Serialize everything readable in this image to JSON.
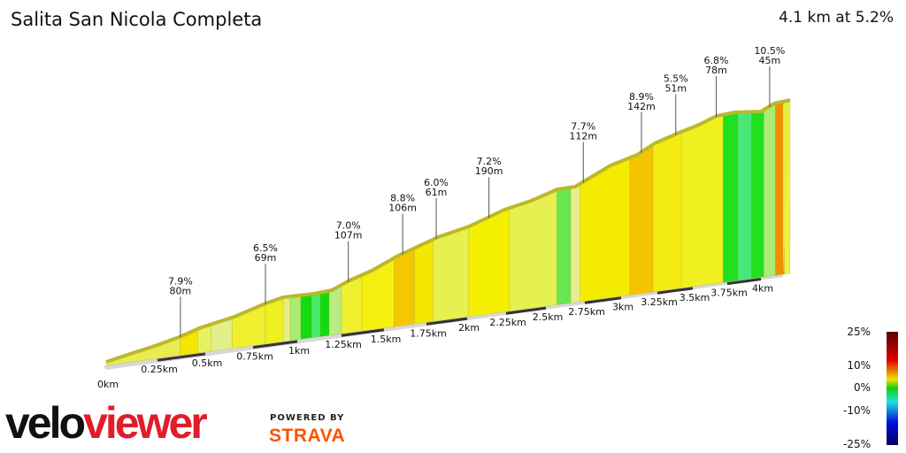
{
  "header": {
    "title": "Salita San Nicola Completa",
    "summary": "4.1 km at 5.2%"
  },
  "chart_data": {
    "type": "area",
    "title": "Salita San Nicola Completa",
    "x_unit": "km",
    "x_ticks": [
      "0km",
      "0.25km",
      "0.5km",
      "0.75km",
      "1km",
      "1.25km",
      "1.5km",
      "1.75km",
      "2km",
      "2.25km",
      "2.5km",
      "2.75km",
      "3km",
      "3.25km",
      "3.5km",
      "3.75km",
      "4km"
    ],
    "annotations": [
      {
        "km": 0.37,
        "gradient": "7.9%",
        "length": "80m"
      },
      {
        "km": 0.82,
        "gradient": "6.5%",
        "length": "69m"
      },
      {
        "km": 1.29,
        "gradient": "7.0%",
        "length": "107m"
      },
      {
        "km": 1.61,
        "gradient": "8.8%",
        "length": "106m"
      },
      {
        "km": 1.81,
        "gradient": "6.0%",
        "length": "61m"
      },
      {
        "km": 2.14,
        "gradient": "7.2%",
        "length": "190m"
      },
      {
        "km": 2.74,
        "gradient": "7.7%",
        "length": "112m"
      },
      {
        "km": 3.14,
        "gradient": "8.9%",
        "length": "142m"
      },
      {
        "km": 3.38,
        "gradient": "5.5%",
        "length": "51m"
      },
      {
        "km": 3.67,
        "gradient": "6.8%",
        "length": "78m"
      },
      {
        "km": 4.03,
        "gradient": "10.5%",
        "length": "45m"
      }
    ],
    "segments": [
      {
        "from": 0,
        "to": 0.37,
        "color": "#e8ec50"
      },
      {
        "from": 0.37,
        "to": 0.46,
        "color": "#f3e600"
      },
      {
        "from": 0.46,
        "to": 0.53,
        "color": "#e8f060"
      },
      {
        "from": 0.53,
        "to": 0.64,
        "color": "#e2ee8a"
      },
      {
        "from": 0.64,
        "to": 0.82,
        "color": "#eef030"
      },
      {
        "from": 0.82,
        "to": 0.92,
        "color": "#f0f020"
      },
      {
        "from": 0.92,
        "to": 0.96,
        "color": "#e6ee80"
      },
      {
        "from": 0.96,
        "to": 1.02,
        "color": "#a8ec70"
      },
      {
        "from": 1.02,
        "to": 1.08,
        "color": "#10dc10"
      },
      {
        "from": 1.08,
        "to": 1.13,
        "color": "#48e868"
      },
      {
        "from": 1.13,
        "to": 1.18,
        "color": "#10dc10"
      },
      {
        "from": 1.18,
        "to": 1.25,
        "color": "#b8ec80"
      },
      {
        "from": 1.25,
        "to": 1.37,
        "color": "#f0f030"
      },
      {
        "from": 1.37,
        "to": 1.56,
        "color": "#f4f010"
      },
      {
        "from": 1.56,
        "to": 1.68,
        "color": "#f4c800"
      },
      {
        "from": 1.68,
        "to": 1.79,
        "color": "#f4e800"
      },
      {
        "from": 1.79,
        "to": 2.01,
        "color": "#e8f050"
      },
      {
        "from": 2.01,
        "to": 2.27,
        "color": "#f4f000"
      },
      {
        "from": 2.27,
        "to": 2.57,
        "color": "#e6f050"
      },
      {
        "from": 2.57,
        "to": 2.66,
        "color": "#68e850"
      },
      {
        "from": 2.66,
        "to": 2.72,
        "color": "#e8ee90"
      },
      {
        "from": 2.72,
        "to": 3.06,
        "color": "#f4ec00"
      },
      {
        "from": 3.06,
        "to": 3.22,
        "color": "#f4c400"
      },
      {
        "from": 3.22,
        "to": 3.42,
        "color": "#f4ec10"
      },
      {
        "from": 3.42,
        "to": 3.72,
        "color": "#f0f020"
      },
      {
        "from": 3.72,
        "to": 3.83,
        "color": "#20e020"
      },
      {
        "from": 3.83,
        "to": 3.93,
        "color": "#48e878"
      },
      {
        "from": 3.93,
        "to": 4.01,
        "color": "#20e020"
      },
      {
        "from": 4.01,
        "to": 4.05,
        "color": "#a8ec70"
      },
      {
        "from": 4.05,
        "to": 4.08,
        "color": "#f09000"
      },
      {
        "from": 4.08,
        "to": 4.1,
        "color": "#f0f040"
      }
    ],
    "legend": {
      "labels": [
        "25%",
        "10%",
        "0%",
        "-10%",
        "-25%"
      ],
      "colors": [
        "#5a0000",
        "#e00000",
        "#f0e000",
        "#10d010",
        "#20e0e0",
        "#0010e0",
        "#000060"
      ]
    }
  },
  "branding": {
    "logo_a": "velo",
    "logo_b": "viewer",
    "powered": "POWERED BY",
    "strava": "STRAVA"
  }
}
